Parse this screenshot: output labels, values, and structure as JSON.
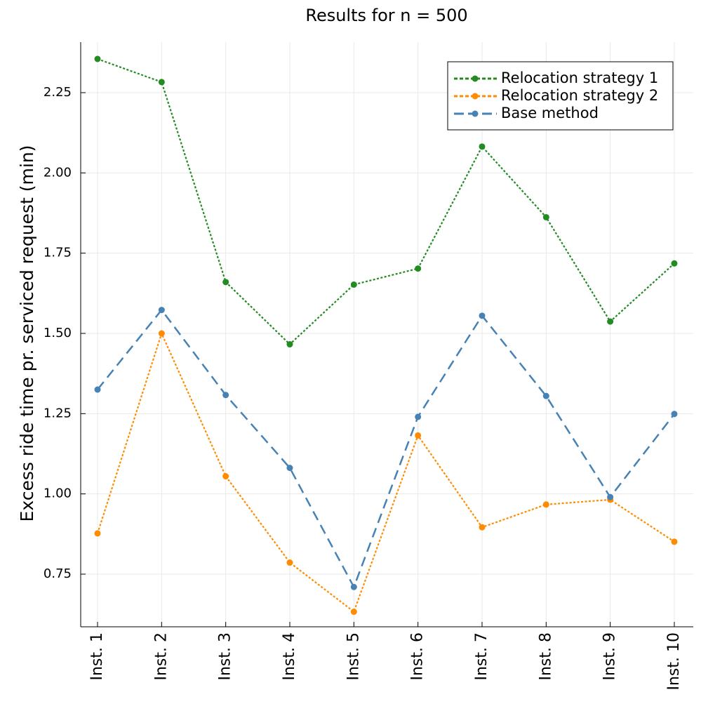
{
  "chart_data": {
    "type": "line",
    "title": "Results for n = 500",
    "xlabel": "",
    "ylabel": "Excess ride time pr. serviced request (min)",
    "categories": [
      "Inst. 1",
      "Inst. 2",
      "Inst. 3",
      "Inst. 4",
      "Inst. 5",
      "Inst. 6",
      "Inst. 7",
      "Inst. 8",
      "Inst. 9",
      "Inst. 10"
    ],
    "yticks": [
      "0.75",
      "1.00",
      "1.25",
      "1.50",
      "1.75",
      "2.00",
      "2.25"
    ],
    "ytick_values": [
      0.75,
      1.0,
      1.25,
      1.5,
      1.75,
      2.0,
      2.25
    ],
    "ylim": [
      0.58,
      2.41
    ],
    "grid": true,
    "legend_position": "top-right",
    "series": [
      {
        "name": "Relocation strategy 1",
        "color": "#228b22",
        "line_style": "dotted",
        "values": [
          2.355,
          2.283,
          1.66,
          1.466,
          1.652,
          1.702,
          2.082,
          1.862,
          1.537,
          1.718
        ]
      },
      {
        "name": "Relocation strategy 2",
        "color": "#ff8c00",
        "line_style": "dotted",
        "values": [
          0.877,
          1.5,
          1.055,
          0.786,
          0.633,
          1.182,
          0.896,
          0.967,
          0.982,
          0.851
        ]
      },
      {
        "name": "Base method",
        "color": "#4682b4",
        "line_style": "dashed",
        "values": [
          1.325,
          1.573,
          1.308,
          1.081,
          0.71,
          1.24,
          1.555,
          1.305,
          0.99,
          1.249
        ]
      }
    ]
  }
}
